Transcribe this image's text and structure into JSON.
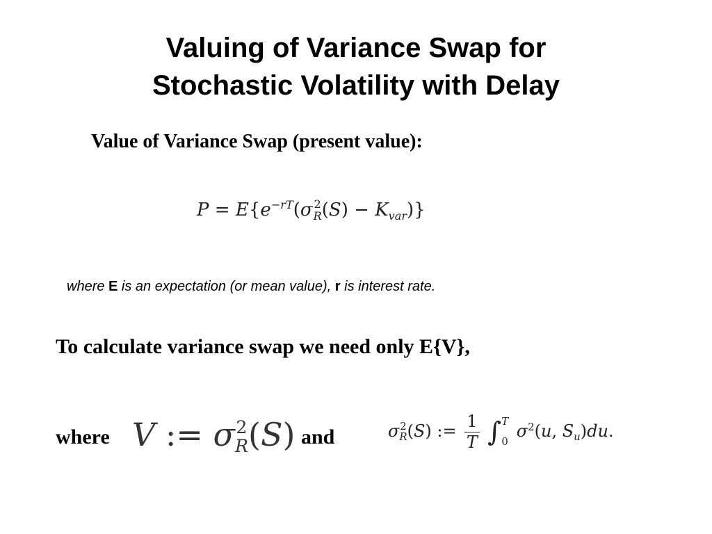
{
  "slide": {
    "title_line1": "Valuing of Variance Swap for",
    "title_line2": "Stochastic Volatility with Delay",
    "subheading": "Value of Variance Swap (present value):",
    "note": {
      "p1": "where ",
      "E": "E",
      "p2": " is an expectation (or mean value), ",
      "r": "r",
      "p3": " is interest rate."
    },
    "calc_text": "To calculate variance swap we need only E{V},",
    "where_word": "where",
    "and_word": "and"
  },
  "equations": {
    "price": "P = E{e^{-rT}(σ_R^2(S) − K_var)}",
    "v_def": "V := σ_R^2(S)",
    "realized_variance": "σ_R^2(S) := (1/T) ∫_0^T σ^2(u, S_u) du."
  }
}
